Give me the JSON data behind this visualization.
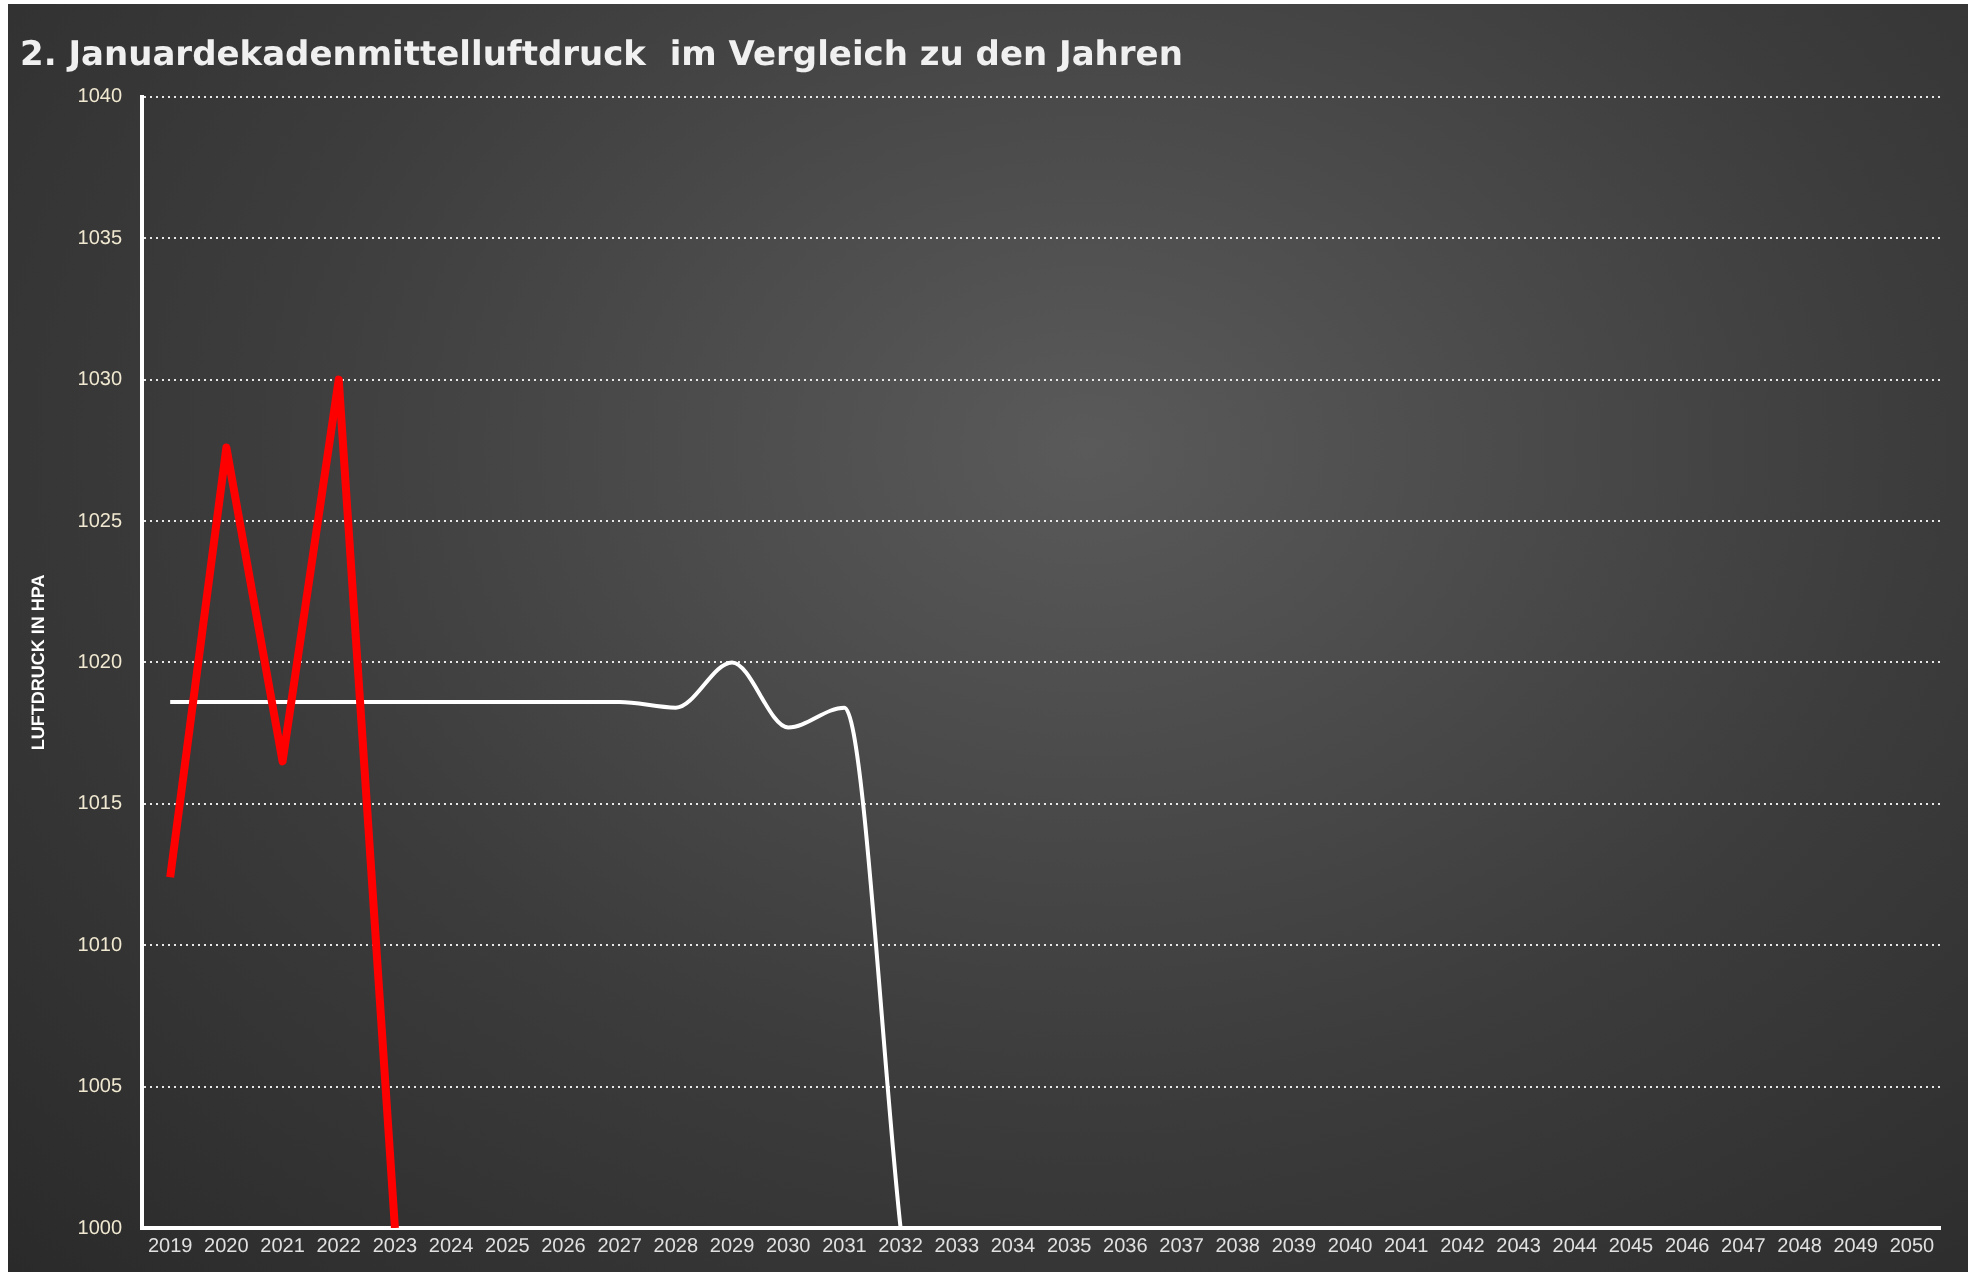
{
  "chart_data": {
    "type": "line",
    "title": "2. Januardekadenmittelluftdruck  im Vergleich zu den Jahren",
    "ylabel": "LUFTDRUCK IN HPA",
    "categories": [
      "2019",
      "2020",
      "2021",
      "2022",
      "2023",
      "2024",
      "2025",
      "2026",
      "2027",
      "2028",
      "2029",
      "2030",
      "2031",
      "2032",
      "2033",
      "2034",
      "2035",
      "2036",
      "2037",
      "2038",
      "2039",
      "2040",
      "2041",
      "2042",
      "2043",
      "2044",
      "2045",
      "2046",
      "2047",
      "2048",
      "2049",
      "2050"
    ],
    "series": [
      {
        "color": "#ff0000",
        "values": [
          1012.4,
          1027.6,
          1016.5,
          1030,
          1000,
          null,
          null,
          null,
          null,
          null,
          null,
          null,
          null,
          null,
          null,
          null,
          null,
          null,
          null,
          null,
          null,
          null,
          null,
          null,
          null,
          null,
          null,
          null,
          null,
          null,
          null,
          null
        ]
      },
      {
        "color": "#ffffff",
        "values": [
          1018.6,
          1018.6,
          1018.6,
          1018.6,
          1018.6,
          1018.6,
          1018.6,
          1018.6,
          1018.6,
          1018.4,
          1020.0,
          1017.7,
          1018.4,
          1000,
          null,
          null,
          null,
          null,
          null,
          null,
          null,
          null,
          null,
          null,
          null,
          null,
          null,
          null,
          null,
          null,
          null,
          null
        ]
      }
    ],
    "ylim": [
      1000,
      1040
    ],
    "yticks": [
      1000,
      1005,
      1010,
      1015,
      1020,
      1025,
      1030,
      1035,
      1040
    ],
    "grid": "y",
    "legend": false,
    "marker": "none"
  }
}
